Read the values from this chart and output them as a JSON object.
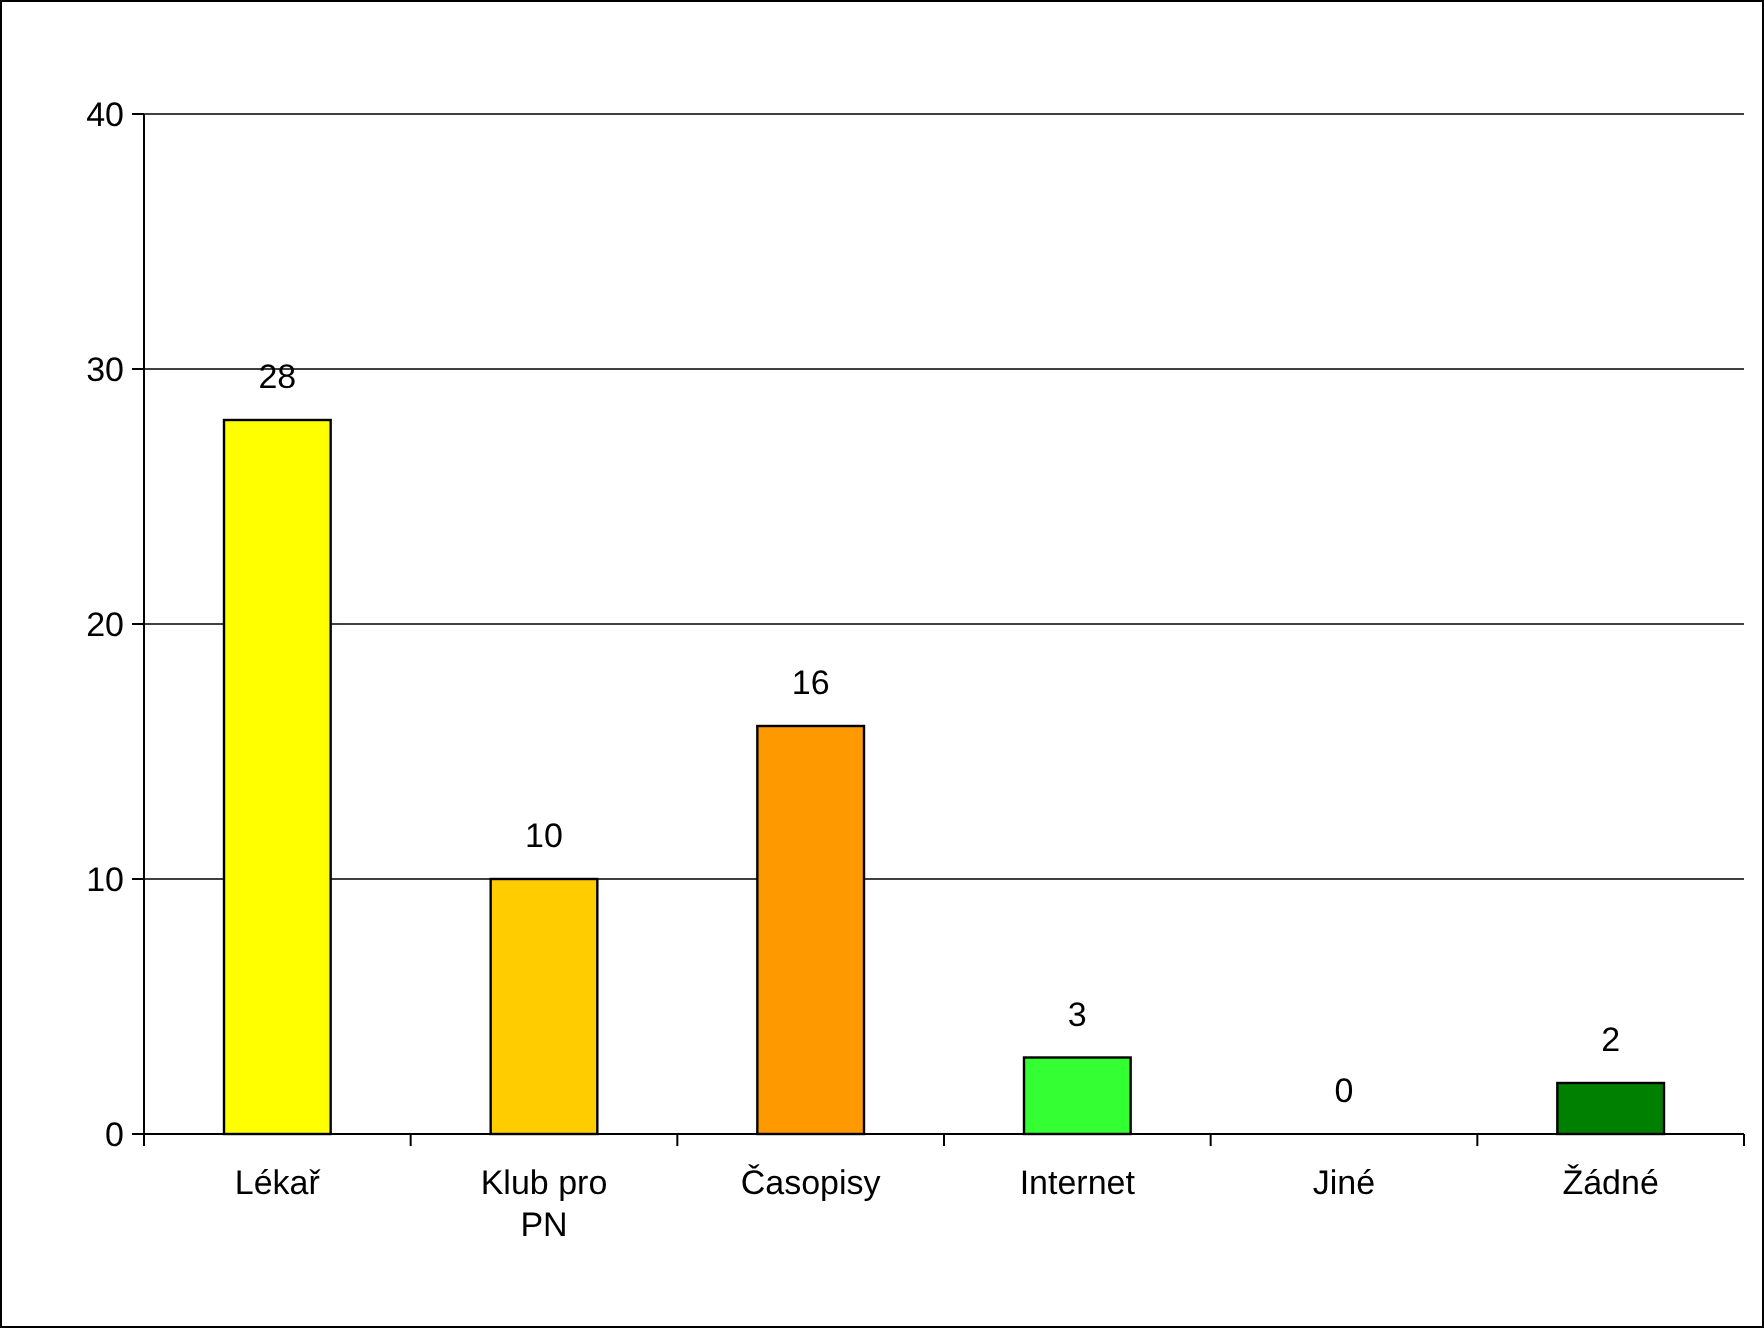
{
  "chart_data": {
    "type": "bar",
    "categories": [
      "Lékař",
      "Klub pro PN",
      "Časopisy",
      "Internet",
      "Jiné",
      "Žádné"
    ],
    "values": [
      28,
      10,
      16,
      3,
      0,
      2
    ],
    "colors": [
      "#ffff00",
      "#ffcc00",
      "#ff9900",
      "#33ff33",
      "#00cc00",
      "#008000"
    ],
    "ylim": [
      0,
      40
    ],
    "yticks": [
      0,
      10,
      20,
      30,
      40
    ],
    "grid": "y",
    "data_labels": true
  }
}
